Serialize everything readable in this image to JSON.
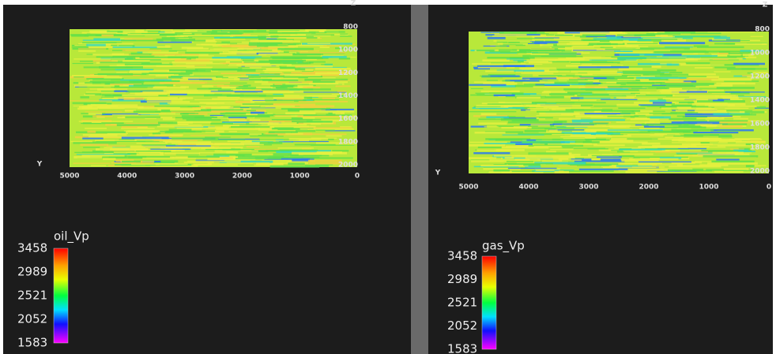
{
  "panels": [
    {
      "z_label": "Z",
      "y_label": "Y",
      "depth_ticks": [
        800,
        1000,
        1200,
        1400,
        1600,
        1800,
        2000
      ],
      "distance_ticks": [
        5000,
        4000,
        3000,
        2000,
        1000,
        0
      ],
      "colorbar": {
        "title": "oil_Vp",
        "labels": [
          3458,
          2989,
          2521,
          2052,
          1583
        ]
      }
    },
    {
      "z_label": "Z",
      "y_label": "Y",
      "depth_ticks": [
        800,
        1000,
        1200,
        1400,
        1600,
        1800,
        2000
      ],
      "distance_ticks": [
        5000,
        4000,
        3000,
        2000,
        1000,
        0
      ],
      "colorbar": {
        "title": "gas_Vp",
        "labels": [
          3458,
          2989,
          2521,
          2052,
          1583
        ]
      }
    }
  ]
}
